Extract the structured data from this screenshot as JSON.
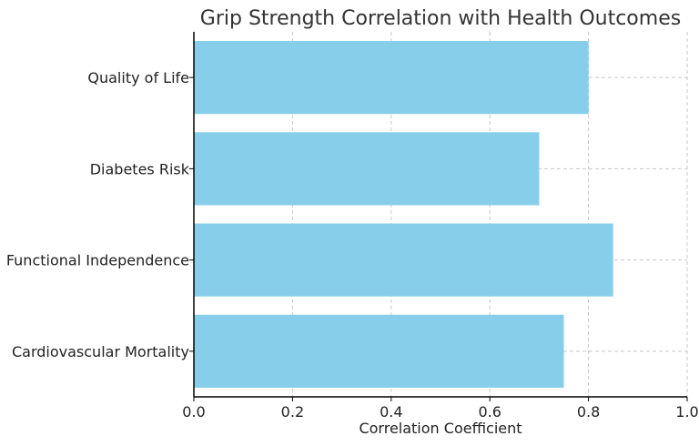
{
  "chart_data": {
    "type": "bar",
    "orientation": "horizontal",
    "title": "Grip Strength Correlation with Health Outcomes",
    "xlabel": "Correlation Coefficient",
    "ylabel": "",
    "categories": [
      "Cardiovascular Mortality",
      "Functional Independence",
      "Diabetes Risk",
      "Quality of Life"
    ],
    "values": [
      0.75,
      0.85,
      0.7,
      0.8
    ],
    "xlim": [
      0.0,
      1.0
    ],
    "xticks": [
      "0.0",
      "0.2",
      "0.4",
      "0.6",
      "0.8",
      "1.0"
    ],
    "grid": true,
    "bar_color": "#87ceeb"
  }
}
